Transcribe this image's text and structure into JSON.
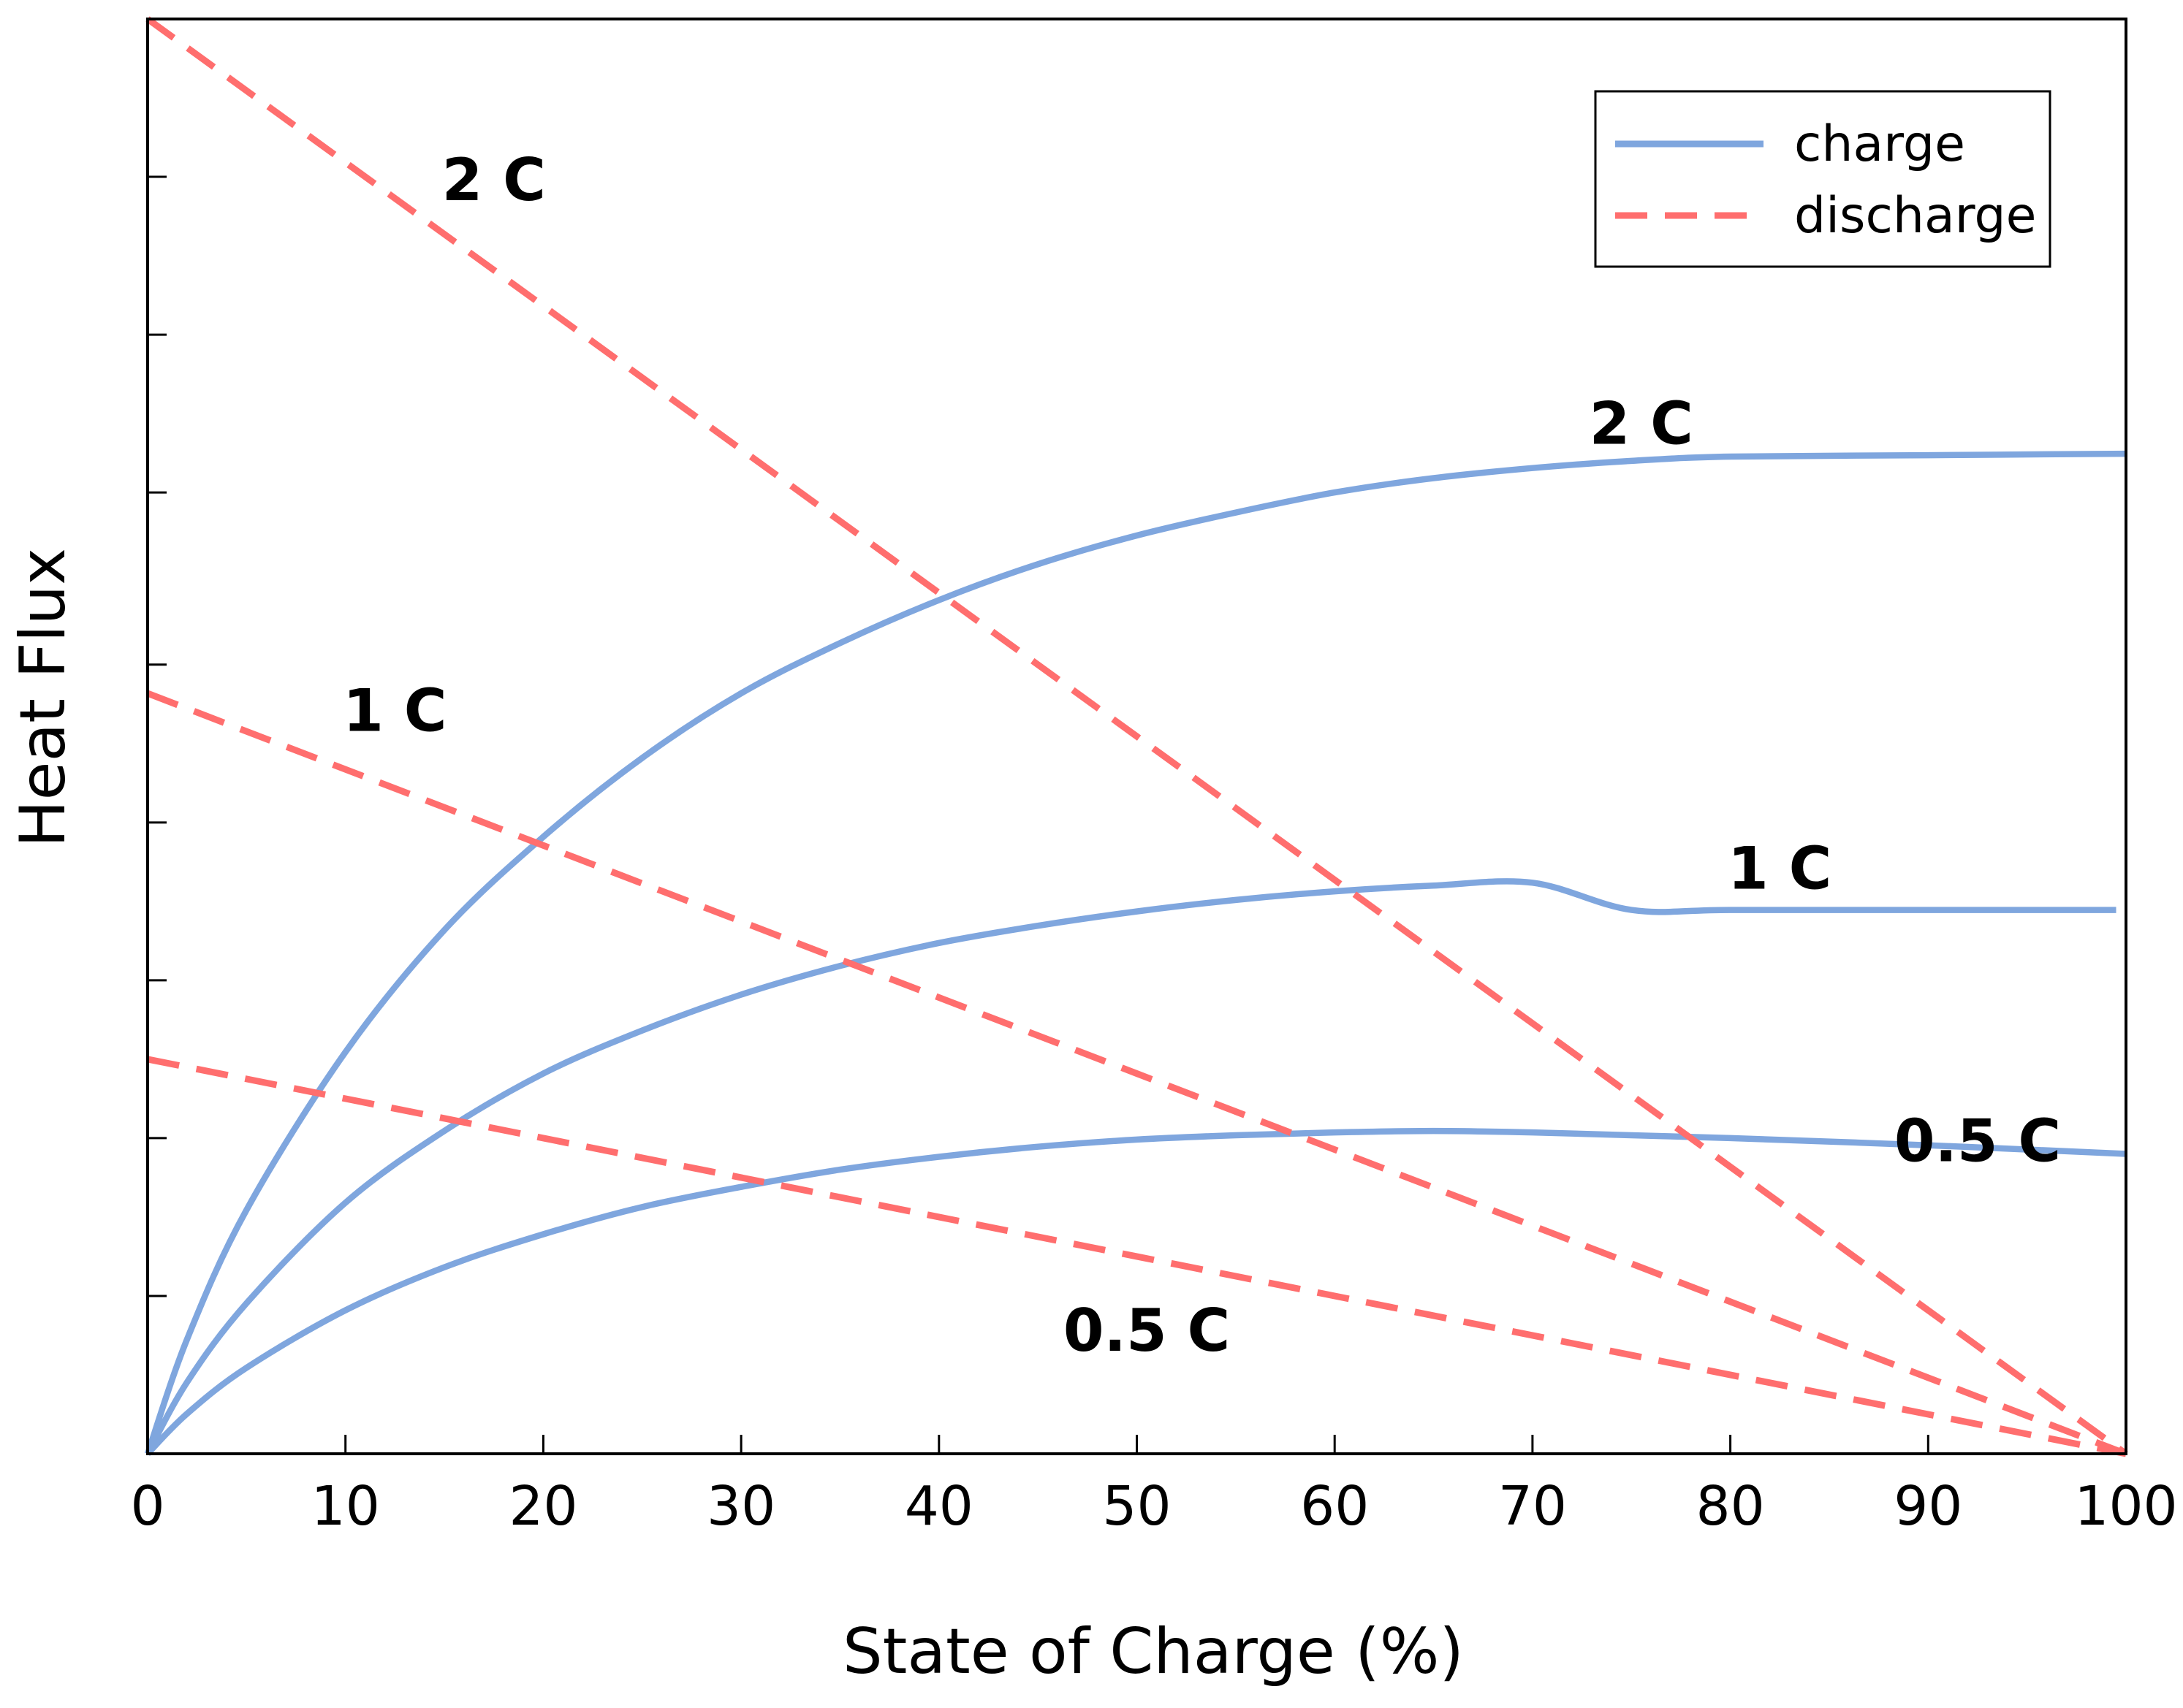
{
  "chart_data": {
    "type": "line",
    "title": "",
    "xlabel": "State of Charge (%)",
    "ylabel": "Heat Flux",
    "xlim": [
      0,
      100
    ],
    "ylim": [
      0,
      100
    ],
    "x_ticks": [
      0,
      10,
      20,
      30,
      40,
      50,
      60,
      70,
      80,
      90,
      100
    ],
    "y_ticks_unlabeled": [
      11,
      22,
      33,
      44,
      55,
      67,
      78,
      89
    ],
    "grid": false,
    "legend_position": "top-right",
    "colors": {
      "charge": "#7fa6de",
      "discharge": "#ff6e6e",
      "axis": "#000000"
    },
    "legend": [
      {
        "name": "charge",
        "style": "solid",
        "color": "#7fa6de"
      },
      {
        "name": "discharge",
        "style": "dashed",
        "color": "#ff6e6e"
      }
    ],
    "series": [
      {
        "name": "charge 2 C",
        "group": "charge",
        "label": "2 C",
        "x": [
          0,
          2,
          5,
          10,
          15,
          20,
          25,
          30,
          35,
          40,
          45,
          50,
          55,
          60,
          65,
          70,
          75,
          80,
          90,
          100
        ],
        "y": [
          0,
          8,
          17,
          28,
          36.5,
          43,
          48.5,
          53,
          56.5,
          59.5,
          62,
          64,
          65.6,
          67,
          68,
          68.7,
          69.2,
          69.5,
          69.6,
          69.7
        ]
      },
      {
        "name": "charge 1 C",
        "group": "charge",
        "label": "1 C",
        "x": [
          0,
          2,
          5,
          10,
          15,
          20,
          25,
          30,
          35,
          40,
          45,
          50,
          55,
          60,
          65,
          70,
          75,
          80,
          90,
          99.5
        ],
        "y": [
          0,
          5,
          10.5,
          17.5,
          22.5,
          26.5,
          29.5,
          32,
          34,
          35.6,
          36.8,
          37.8,
          38.6,
          39.2,
          39.6,
          39.8,
          37.9,
          37.9,
          37.9,
          37.9
        ]
      },
      {
        "name": "charge 0.5 C",
        "group": "charge",
        "label": "0.5 C",
        "x": [
          0,
          2,
          5,
          10,
          15,
          20,
          25,
          30,
          35,
          40,
          45,
          50,
          55,
          60,
          65,
          70,
          75,
          80,
          90,
          100
        ],
        "y": [
          0,
          2.8,
          6,
          10,
          13,
          15.3,
          17.2,
          18.6,
          19.8,
          20.7,
          21.4,
          21.9,
          22.2,
          22.4,
          22.5,
          22.4,
          22.2,
          22,
          21.5,
          20.9
        ]
      },
      {
        "name": "discharge 2 C",
        "group": "discharge",
        "label": "2 C",
        "x": [
          0,
          100
        ],
        "y": [
          100,
          0
        ]
      },
      {
        "name": "discharge 1 C",
        "group": "discharge",
        "label": "1 C",
        "x": [
          0,
          100
        ],
        "y": [
          53,
          0
        ]
      },
      {
        "name": "discharge 0.5 C",
        "group": "discharge",
        "label": "0.5 C",
        "x": [
          0,
          100
        ],
        "y": [
          27.5,
          0
        ]
      }
    ],
    "annotations": [
      {
        "text": "2 C",
        "x": 17.5,
        "y": 88.5
      },
      {
        "text": "2 C",
        "x": 75.5,
        "y": 71.5
      },
      {
        "text": "1 C",
        "x": 12.5,
        "y": 51.5
      },
      {
        "text": "1 C",
        "x": 82.5,
        "y": 40.5
      },
      {
        "text": "0.5 C",
        "x": 92.5,
        "y": 21.5
      },
      {
        "text": "0.5 C",
        "x": 50.5,
        "y": 8.3
      }
    ]
  }
}
